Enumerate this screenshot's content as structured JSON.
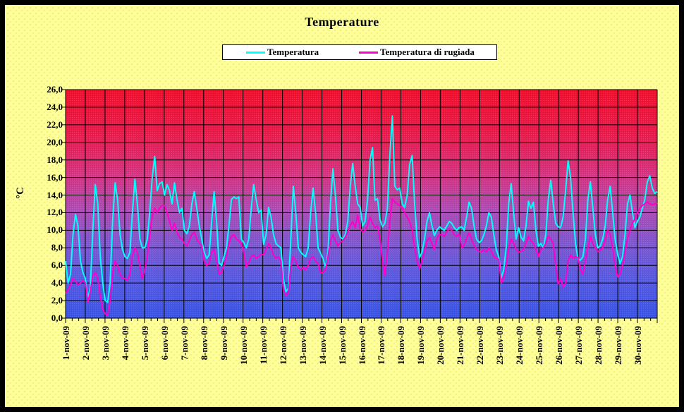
{
  "title": "Temperature",
  "legend": {
    "items": [
      {
        "label": "Temperatura",
        "color": "#00FFFF"
      },
      {
        "label": "Temperatura di rugiada",
        "color": "#FF00CC"
      }
    ]
  },
  "y_axis": {
    "title": "°C",
    "tick_labels": [
      "26,0",
      "24,0",
      "22,0",
      "20,0",
      "18,0",
      "16,0",
      "14,0",
      "12,0",
      "10,0",
      "8,0",
      "6,0",
      "4,0",
      "2,0",
      "0,0"
    ]
  },
  "x_axis": {
    "labels": [
      "1-nov-09",
      "2-nov-09",
      "3-nov-09",
      "4-nov-09",
      "5-nov-09",
      "6-nov-09",
      "7-nov-09",
      "8-nov-09",
      "9-nov-09",
      "10-nov-09",
      "11-nov-09",
      "12-nov-09",
      "13-nov-09",
      "14-nov-09",
      "15-nov-09",
      "16-nov-09",
      "17-nov-09",
      "18-nov-09",
      "19-nov-09",
      "20-nov-09",
      "21-nov-09",
      "22-nov-09",
      "23-nov-09",
      "24-nov-09",
      "25-nov-09",
      "26-nov-09",
      "27-nov-09",
      "28-nov-09",
      "29-nov-09",
      "30-nov-09"
    ]
  },
  "chart_data": {
    "type": "line",
    "title": "Temperature",
    "ylabel": "°C",
    "ylim": [
      0,
      26
    ],
    "ystep": 2,
    "grid": "both",
    "legend_position": "top",
    "x_categories": [
      "1-nov-09",
      "2-nov-09",
      "3-nov-09",
      "4-nov-09",
      "5-nov-09",
      "6-nov-09",
      "7-nov-09",
      "8-nov-09",
      "9-nov-09",
      "10-nov-09",
      "11-nov-09",
      "12-nov-09",
      "13-nov-09",
      "14-nov-09",
      "15-nov-09",
      "16-nov-09",
      "17-nov-09",
      "18-nov-09",
      "19-nov-09",
      "20-nov-09",
      "21-nov-09",
      "22-nov-09",
      "23-nov-09",
      "24-nov-09",
      "25-nov-09",
      "26-nov-09",
      "27-nov-09",
      "28-nov-09",
      "29-nov-09",
      "30-nov-09"
    ],
    "samples_per_day": 8,
    "sample_interval_hours": 3,
    "plot_bg_gradient": [
      {
        "offset": 0.0,
        "color": "#F2102E"
      },
      {
        "offset": 0.2,
        "color": "#E91C4E"
      },
      {
        "offset": 0.38,
        "color": "#D63585"
      },
      {
        "offset": 0.52,
        "color": "#B04BB4"
      },
      {
        "offset": 0.68,
        "color": "#7E58D2"
      },
      {
        "offset": 0.82,
        "color": "#5A5BE2"
      },
      {
        "offset": 1.0,
        "color": "#3A55E8"
      }
    ],
    "series": [
      {
        "name": "Temperatura",
        "color": "#00FFFF",
        "values": [
          6.5,
          4.0,
          5.0,
          9.5,
          11.8,
          10.5,
          6.5,
          5.2,
          4.5,
          2.2,
          3.5,
          10.0,
          15.2,
          13.0,
          7.0,
          4.0,
          2.0,
          1.8,
          4.0,
          11.0,
          15.4,
          13.5,
          9.5,
          7.8,
          7.0,
          6.8,
          7.5,
          12.0,
          15.8,
          13.0,
          9.0,
          8.0,
          8.0,
          9.0,
          12.0,
          16.0,
          18.4,
          14.5,
          15.3,
          15.5,
          14.0,
          15.2,
          14.5,
          13.0,
          15.4,
          13.5,
          12.0,
          12.5,
          10.0,
          9.6,
          10.5,
          13.0,
          14.4,
          12.5,
          10.5,
          9.0,
          7.5,
          6.8,
          7.2,
          11.0,
          14.4,
          11.0,
          6.3,
          6.0,
          7.0,
          8.0,
          10.5,
          13.5,
          13.8,
          13.6,
          13.8,
          9.0,
          8.6,
          8.0,
          9.0,
          12.5,
          15.2,
          13.5,
          12.0,
          12.3,
          8.4,
          9.5,
          12.6,
          11.5,
          9.5,
          8.5,
          8.2,
          8.0,
          4.5,
          3.0,
          3.4,
          9.0,
          15.0,
          12.0,
          8.0,
          7.5,
          7.2,
          7.0,
          8.0,
          12.0,
          14.8,
          12.0,
          8.0,
          7.4,
          6.8,
          5.8,
          7.5,
          13.0,
          17.0,
          14.0,
          10.0,
          9.2,
          9.0,
          9.5,
          11.0,
          15.0,
          17.6,
          15.0,
          13.0,
          12.6,
          10.5,
          11.0,
          13.5,
          18.0,
          19.4,
          13.4,
          13.6,
          11.2,
          10.4,
          10.8,
          12.5,
          18.5,
          23.0,
          15.0,
          14.6,
          14.8,
          13.0,
          12.6,
          14.0,
          17.5,
          18.5,
          13.0,
          9.0,
          6.9,
          7.5,
          9.0,
          11.0,
          12.0,
          10.5,
          9.4,
          10.0,
          10.4,
          10.2,
          10.0,
          10.5,
          11.0,
          10.8,
          10.3,
          10.0,
          10.3,
          10.4,
          10.0,
          11.5,
          13.2,
          12.5,
          10.5,
          9.0,
          8.6,
          8.8,
          9.5,
          10.5,
          12.0,
          11.5,
          9.5,
          7.8,
          7.0,
          4.6,
          5.5,
          8.0,
          13.0,
          15.3,
          12.0,
          9.0,
          10.3,
          9.2,
          8.8,
          10.5,
          13.3,
          12.5,
          13.2,
          10.0,
          8.2,
          8.5,
          8.0,
          9.5,
          13.5,
          15.7,
          13.0,
          10.8,
          10.4,
          10.3,
          11.5,
          14.5,
          17.9,
          16.0,
          12.0,
          8.5,
          6.7,
          6.6,
          7.0,
          9.0,
          13.5,
          15.5,
          12.5,
          9.5,
          8.0,
          8.2,
          9.0,
          10.5,
          13.5,
          15.0,
          12.0,
          9.0,
          7.3,
          6.2,
          7.0,
          9.5,
          13.0,
          14.0,
          12.0,
          10.3,
          11.0,
          11.5,
          12.5,
          13.5,
          15.5,
          16.2,
          14.8,
          14.2,
          14.4
        ]
      },
      {
        "name": "Temperatura di rugiada",
        "color": "#FF00CC",
        "values": [
          2.8,
          3.2,
          3.8,
          4.5,
          4.2,
          3.8,
          4.0,
          4.3,
          4.0,
          1.8,
          3.0,
          4.8,
          5.2,
          4.5,
          2.5,
          1.0,
          0.5,
          0.3,
          2.0,
          5.0,
          6.5,
          6.0,
          5.0,
          4.5,
          4.5,
          4.3,
          5.0,
          7.0,
          8.0,
          7.5,
          6.0,
          4.5,
          5.5,
          7.0,
          9.5,
          11.5,
          12.5,
          12.0,
          12.5,
          12.8,
          12.8,
          12.0,
          11.0,
          10.0,
          10.8,
          9.8,
          9.2,
          9.0,
          8.5,
          8.2,
          8.8,
          9.5,
          9.8,
          9.0,
          8.5,
          8.3,
          6.5,
          6.0,
          6.2,
          7.5,
          7.8,
          6.5,
          5.0,
          5.2,
          6.0,
          7.0,
          8.5,
          9.3,
          9.5,
          9.0,
          8.8,
          8.5,
          7.5,
          5.8,
          6.3,
          7.0,
          7.2,
          6.8,
          7.0,
          7.3,
          7.2,
          7.8,
          8.5,
          8.0,
          7.2,
          6.8,
          7.0,
          6.5,
          3.2,
          2.6,
          2.8,
          6.0,
          7.0,
          6.5,
          5.8,
          5.5,
          5.8,
          5.5,
          6.0,
          6.8,
          7.0,
          6.5,
          6.2,
          5.2,
          5.2,
          5.5,
          7.0,
          8.8,
          9.5,
          8.8,
          8.2,
          8.6,
          8.8,
          9.2,
          9.8,
          10.5,
          11.0,
          10.3,
          11.7,
          10.2,
          9.8,
          10.0,
          10.5,
          11.5,
          10.8,
          10.3,
          10.5,
          9.0,
          6.5,
          4.8,
          7.5,
          11.0,
          13.6,
          13.2,
          13.0,
          12.8,
          12.5,
          12.0,
          11.5,
          11.0,
          10.0,
          8.0,
          6.5,
          5.6,
          6.5,
          7.5,
          8.8,
          9.2,
          8.5,
          7.8,
          9.0,
          9.5,
          9.5,
          9.3,
          9.8,
          10.2,
          10.0,
          9.5,
          9.3,
          9.6,
          8.0,
          8.3,
          9.0,
          9.7,
          9.0,
          8.3,
          7.8,
          7.6,
          7.5,
          7.8,
          7.5,
          8.0,
          7.6,
          7.0,
          6.8,
          6.7,
          4.0,
          4.5,
          6.0,
          8.0,
          9.0,
          8.5,
          7.8,
          7.5,
          7.6,
          7.8,
          8.5,
          9.3,
          8.8,
          8.5,
          7.8,
          7.0,
          7.8,
          8.0,
          8.5,
          9.3,
          9.0,
          8.5,
          6.0,
          3.9,
          4.5,
          3.5,
          4.0,
          6.5,
          7.2,
          6.8,
          7.0,
          6.9,
          5.5,
          5.0,
          6.5,
          8.0,
          9.3,
          8.5,
          8.0,
          7.6,
          7.7,
          8.0,
          8.8,
          10.0,
          9.5,
          8.0,
          6.0,
          4.7,
          5.0,
          6.0,
          7.5,
          9.0,
          10.0,
          10.8,
          11.3,
          12.0,
          12.5,
          12.8,
          13.0,
          13.2,
          13.0,
          12.9,
          13.0,
          13.1
        ]
      }
    ]
  }
}
